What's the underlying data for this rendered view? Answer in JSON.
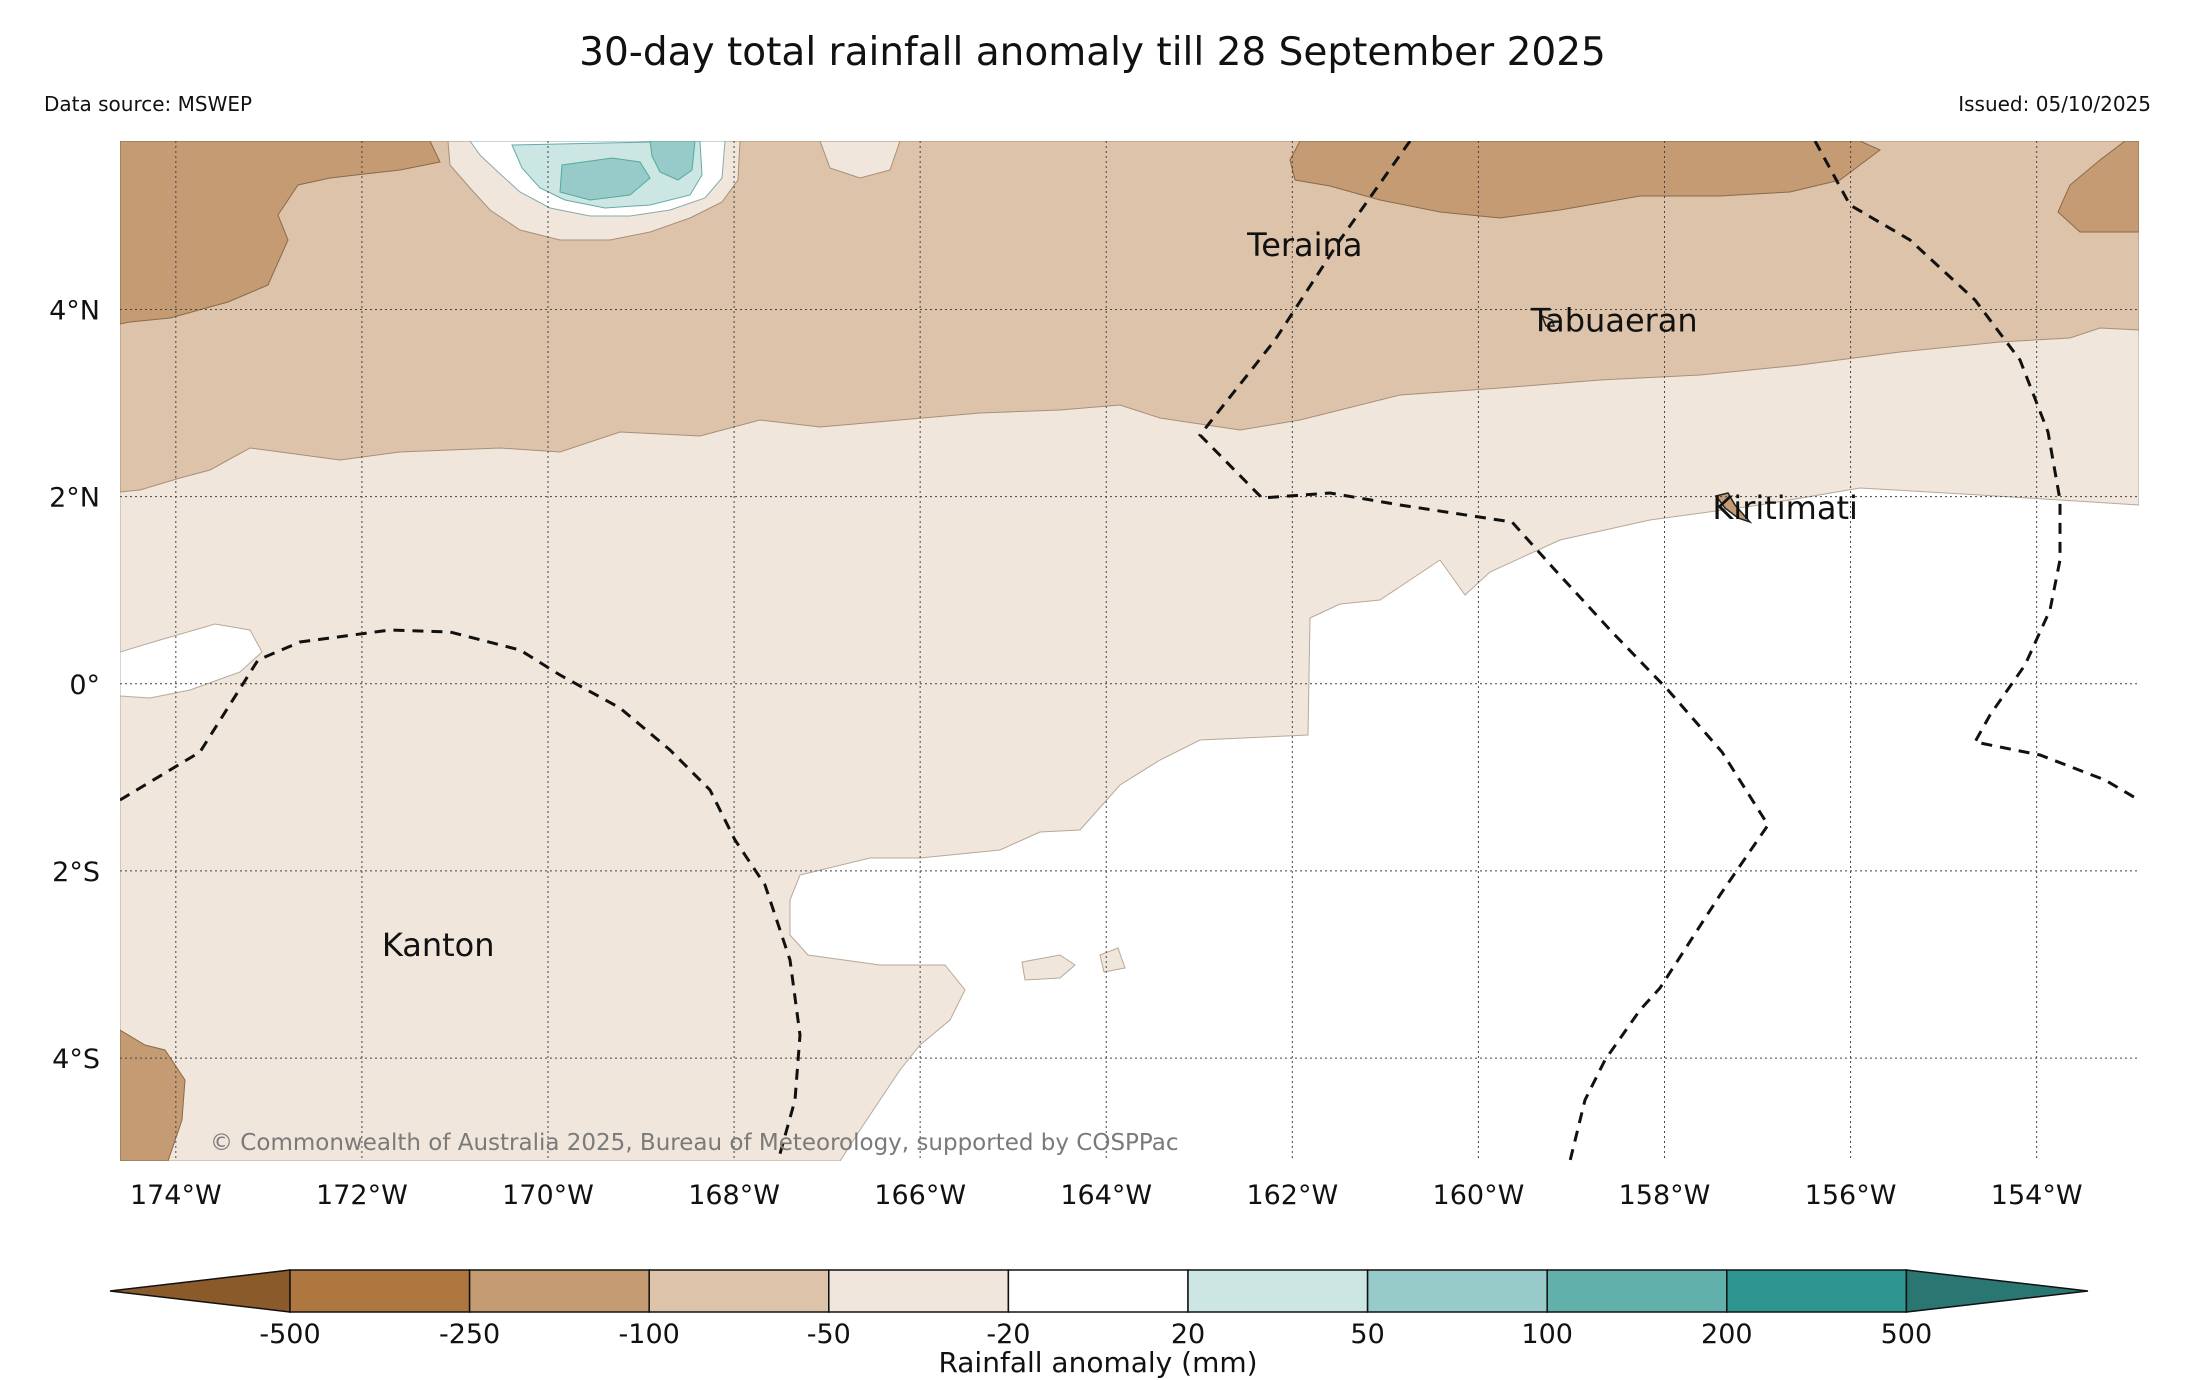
{
  "title": "30-day total rainfall anomaly till 28 September 2025",
  "data_source": "Data source: MSWEP",
  "issued": "Issued: 05/10/2025",
  "copyright": "© Commonwealth of Australia 2025, Bureau of Meteorology, supported by COSPPac",
  "map": {
    "lon_range": [
      -174.6,
      -152.9
    ],
    "lat_range": [
      -5.1,
      5.8
    ],
    "x_ticks": [
      "174°W",
      "172°W",
      "170°W",
      "168°W",
      "166°W",
      "164°W",
      "162°W",
      "160°W",
      "158°W",
      "156°W",
      "154°W"
    ],
    "y_ticks": [
      "4°N",
      "2°N",
      "0°",
      "2°S",
      "4°S"
    ],
    "places": [
      {
        "name": "Teraina",
        "lon": -162.4,
        "lat": 4.68
      },
      {
        "name": "Tabuaeran",
        "lon": -159.35,
        "lat": 3.87
      },
      {
        "name": "Kiritimati",
        "lon": -157.4,
        "lat": 1.87
      },
      {
        "name": "Kanton",
        "lon": -171.7,
        "lat": -2.8
      }
    ]
  },
  "colorbar": {
    "title": "Rainfall anomaly (mm)",
    "labels": [
      "-500",
      "-250",
      "-100",
      "-50",
      "-20",
      "20",
      "50",
      "100",
      "200",
      "500"
    ],
    "colors": [
      "#8b5a2b",
      "#ae773f",
      "#c49b72",
      "#dcc3aa",
      "#f1e6dc",
      "#ffffff",
      "#cbe6e3",
      "#97cbc9",
      "#62b0ac",
      "#2e9590",
      "#2a7672"
    ]
  }
}
